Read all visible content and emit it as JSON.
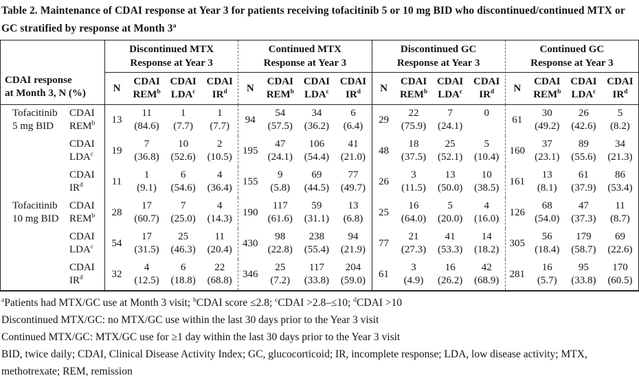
{
  "title": "Table 2. Maintenance of CDAI response at Year 3 for patients receiving tofacitinib 5 or 10 mg BID who discontinued/continued MTX or GC stratified by response at Month 3^{a}",
  "table": {
    "row_header": {
      "line1": "CDAI response",
      "line2": "at Month 3, N (%)"
    },
    "groups": [
      {
        "title": "Discontinued MTX",
        "subtitle": "Response at Year 3"
      },
      {
        "title": "Continued MTX",
        "subtitle": "Response at Year 3"
      },
      {
        "title": "Discontinued GC",
        "subtitle": "Response at Year 3"
      },
      {
        "title": "Continued GC",
        "subtitle": "Response at Year 3"
      }
    ],
    "subcolumns": [
      {
        "l1": "N",
        "l2": ""
      },
      {
        "l1": "CDAI",
        "l2": "REM^{b}"
      },
      {
        "l1": "CDAI",
        "l2": "LDA^{c}"
      },
      {
        "l1": "CDAI",
        "l2": "IR^{d}"
      }
    ],
    "rows": [
      {
        "drug": [
          "Tofacitinib",
          "5 mg BID"
        ],
        "category": [
          "CDAI",
          "REM^{b}"
        ],
        "groups": [
          {
            "n": "13",
            "cells": [
              [
                "11",
                "(84.6)"
              ],
              [
                "1",
                "(7.7)"
              ],
              [
                "1",
                "(7.7)"
              ]
            ]
          },
          {
            "n": "94",
            "cells": [
              [
                "54",
                "(57.5)"
              ],
              [
                "34",
                "(36.2)"
              ],
              [
                "6",
                "(6.4)"
              ]
            ]
          },
          {
            "n": "29",
            "cells": [
              [
                "22",
                "(75.9)"
              ],
              [
                "7",
                "(24.1)"
              ],
              [
                "0",
                ""
              ]
            ]
          },
          {
            "n": "61",
            "cells": [
              [
                "30",
                "(49.2)"
              ],
              [
                "26",
                "(42.6)"
              ],
              [
                "5",
                "(8.2)"
              ]
            ]
          }
        ]
      },
      {
        "drug": null,
        "category": [
          "CDAI",
          "LDA^{c}"
        ],
        "groups": [
          {
            "n": "19",
            "cells": [
              [
                "7",
                "(36.8)"
              ],
              [
                "10",
                "(52.6)"
              ],
              [
                "2",
                "(10.5)"
              ]
            ]
          },
          {
            "n": "195",
            "cells": [
              [
                "47",
                "(24.1)"
              ],
              [
                "106",
                "(54.4)"
              ],
              [
                "41",
                "(21.0)"
              ]
            ]
          },
          {
            "n": "48",
            "cells": [
              [
                "18",
                "(37.5)"
              ],
              [
                "25",
                "(52.1)"
              ],
              [
                "5",
                "(10.4)"
              ]
            ]
          },
          {
            "n": "160",
            "cells": [
              [
                "37",
                "(23.1)"
              ],
              [
                "89",
                "(55.6)"
              ],
              [
                "34",
                "(21.3)"
              ]
            ]
          }
        ]
      },
      {
        "drug": null,
        "category": [
          "CDAI",
          "IR^{d}"
        ],
        "groups": [
          {
            "n": "11",
            "cells": [
              [
                "1",
                "(9.1)"
              ],
              [
                "6",
                "(54.6)"
              ],
              [
                "4",
                "(36.4)"
              ]
            ]
          },
          {
            "n": "155",
            "cells": [
              [
                "9",
                "(5.8)"
              ],
              [
                "69",
                "(44.5)"
              ],
              [
                "77",
                "(49.7)"
              ]
            ]
          },
          {
            "n": "26",
            "cells": [
              [
                "3",
                "(11.5)"
              ],
              [
                "13",
                "(50.0)"
              ],
              [
                "10",
                "(38.5)"
              ]
            ]
          },
          {
            "n": "161",
            "cells": [
              [
                "13",
                "(8.1)"
              ],
              [
                "61",
                "(37.9)"
              ],
              [
                "86",
                "(53.4)"
              ]
            ]
          }
        ]
      },
      {
        "drug": [
          "Tofacitinib",
          "10 mg BID"
        ],
        "category": [
          "CDAI",
          "REM^{b}"
        ],
        "groups": [
          {
            "n": "28",
            "cells": [
              [
                "17",
                "(60.7)"
              ],
              [
                "7",
                "(25.0)"
              ],
              [
                "4",
                "(14.3)"
              ]
            ]
          },
          {
            "n": "190",
            "cells": [
              [
                "117",
                "(61.6)"
              ],
              [
                "59",
                "(31.1)"
              ],
              [
                "13",
                "(6.8)"
              ]
            ]
          },
          {
            "n": "25",
            "cells": [
              [
                "16",
                "(64.0)"
              ],
              [
                "5",
                "(20.0)"
              ],
              [
                "4",
                "(16.0)"
              ]
            ]
          },
          {
            "n": "126",
            "cells": [
              [
                "68",
                "(54.0)"
              ],
              [
                "47",
                "(37.3)"
              ],
              [
                "11",
                "(8.7)"
              ]
            ]
          }
        ]
      },
      {
        "drug": null,
        "category": [
          "CDAI",
          "LDA^{c}"
        ],
        "groups": [
          {
            "n": "54",
            "cells": [
              [
                "17",
                "(31.5)"
              ],
              [
                "25",
                "(46.3)"
              ],
              [
                "11",
                "(20.4)"
              ]
            ]
          },
          {
            "n": "430",
            "cells": [
              [
                "98",
                "(22.8)"
              ],
              [
                "238",
                "(55.4)"
              ],
              [
                "94",
                "(21.9)"
              ]
            ]
          },
          {
            "n": "77",
            "cells": [
              [
                "21",
                "(27.3)"
              ],
              [
                "41",
                "(53.3)"
              ],
              [
                "14",
                "(18.2)"
              ]
            ]
          },
          {
            "n": "305",
            "cells": [
              [
                "56",
                "(18.4)"
              ],
              [
                "179",
                "(58.7)"
              ],
              [
                "69",
                "(22.6)"
              ]
            ]
          }
        ]
      },
      {
        "drug": null,
        "category": [
          "CDAI",
          "IR^{d}"
        ],
        "groups": [
          {
            "n": "32",
            "cells": [
              [
                "4",
                "(12.5)"
              ],
              [
                "6",
                "(18.8)"
              ],
              [
                "22",
                "(68.8)"
              ]
            ]
          },
          {
            "n": "346",
            "cells": [
              [
                "25",
                "(7.2)"
              ],
              [
                "117",
                "(33.8)"
              ],
              [
                "204",
                "(59.0)"
              ]
            ]
          },
          {
            "n": "61",
            "cells": [
              [
                "3",
                "(4.9)"
              ],
              [
                "16",
                "(26.2)"
              ],
              [
                "42",
                "(68.9)"
              ]
            ]
          },
          {
            "n": "281",
            "cells": [
              [
                "16",
                "(5.7)"
              ],
              [
                "95",
                "(33.8)"
              ],
              [
                "170",
                "(60.5)"
              ]
            ]
          }
        ]
      }
    ]
  },
  "footnotes": [
    "^{a}Patients had MTX/GC use at Month 3 visit; ^{b}CDAI score ≤2.8; ^{c}CDAI >2.8–≤10; ^{d}CDAI >10",
    "Discontinued MTX/GC: no MTX/GC use within the last 30 days prior to the Year 3 visit",
    "Continued MTX/GC: MTX/GC use for ≥1 day within the last 30 days prior to the Year 3 visit",
    "BID, twice daily; CDAI, Clinical Disease Activity Index; GC, glucocorticoid; IR, incomplete response; LDA, low disease activity; MTX,",
    "methotrexate; REM, remission"
  ],
  "colors": {
    "text": "#141414",
    "border": "#222222",
    "background": "#ffffff"
  }
}
